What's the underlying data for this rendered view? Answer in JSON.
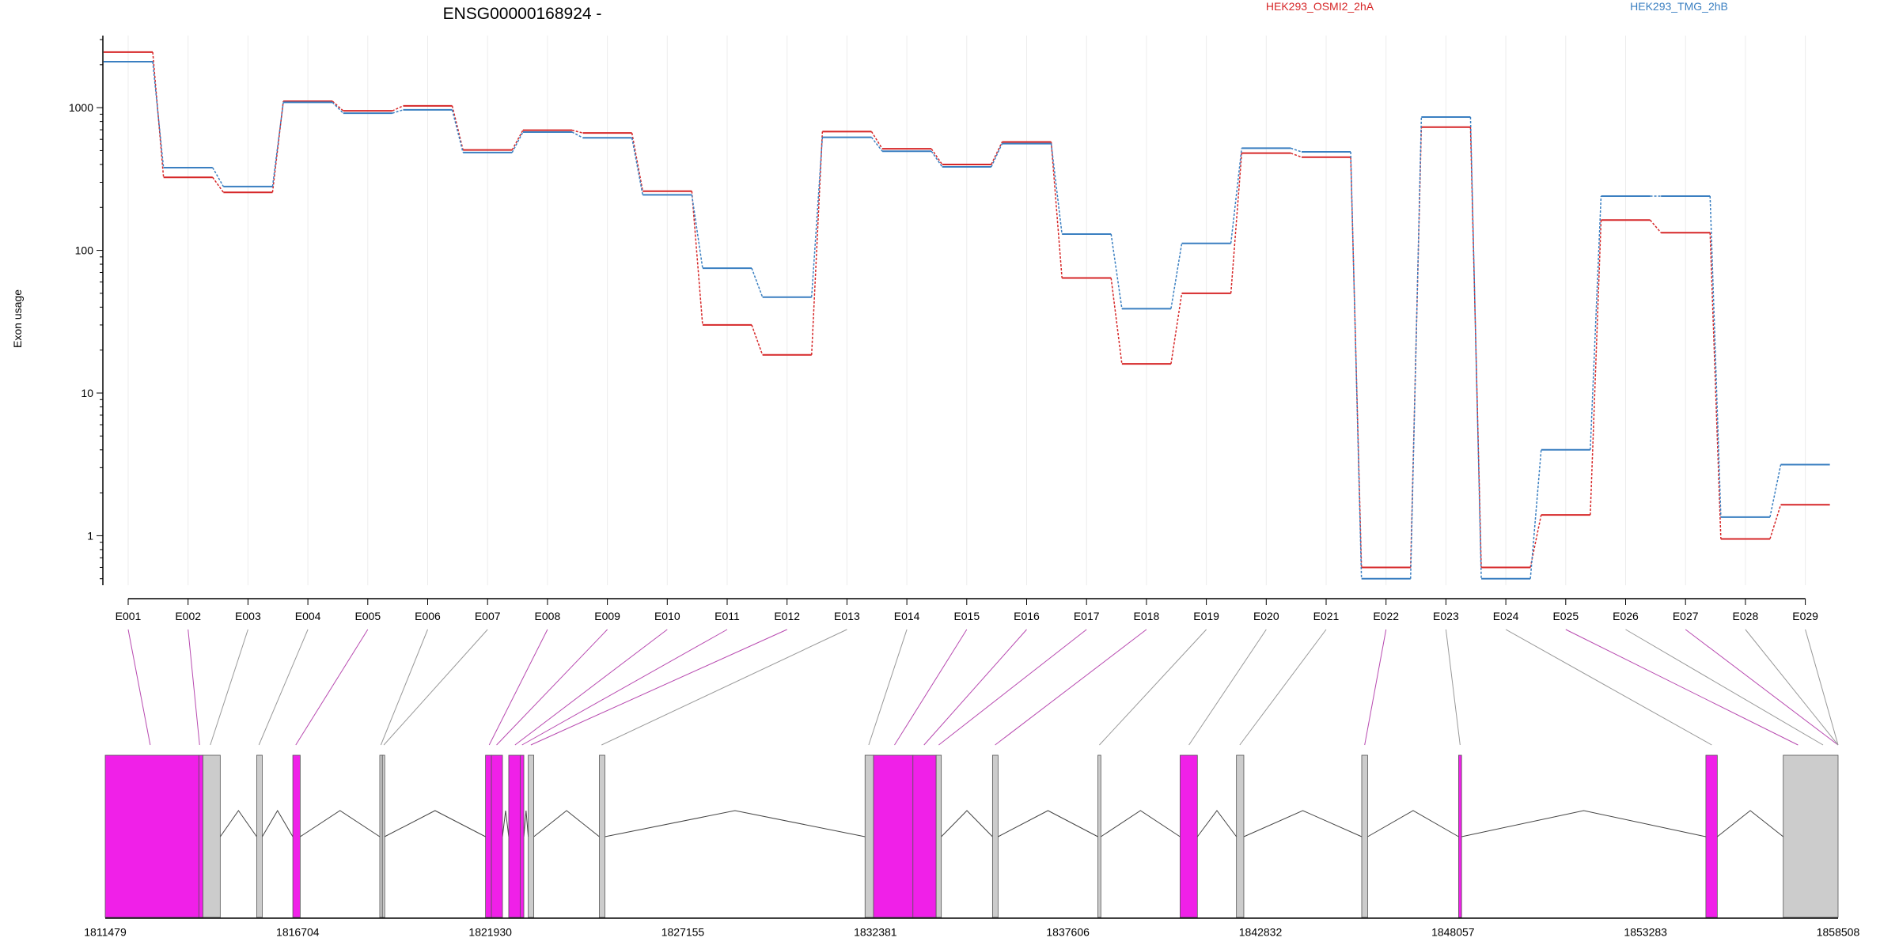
{
  "chart_data": {
    "type": "line",
    "title": "ENSG00000168924 -",
    "xlabel": "",
    "ylabel": "Exon usage",
    "y_scale": "log",
    "ylim": [
      0.45,
      3200
    ],
    "y_ticks": [
      1,
      10,
      100,
      1000
    ],
    "y_tick_labels": [
      "1",
      "10",
      "100",
      "1000"
    ],
    "grid": "vertical",
    "legend_placement": "top-right",
    "categories": [
      "E001",
      "E002",
      "E003",
      "E004",
      "E005",
      "E006",
      "E007",
      "E008",
      "E009",
      "E010",
      "E011",
      "E012",
      "E013",
      "E014",
      "E015",
      "E016",
      "E017",
      "E018",
      "E019",
      "E020",
      "E021",
      "E022",
      "E023",
      "E024",
      "E025",
      "E026",
      "E027",
      "E028",
      "E029"
    ],
    "series": [
      {
        "name": "HEK293_OSMI2_2hA",
        "color": "#d62728",
        "values": [
          2450,
          325,
          255,
          1110,
          950,
          1030,
          505,
          695,
          665,
          260,
          30,
          18.5,
          680,
          515,
          400,
          575,
          64,
          16,
          50,
          480,
          450,
          0.6,
          730,
          0.6,
          1.4,
          163,
          133,
          0.95,
          1.65
        ]
      },
      {
        "name": "HEK293_TMG_2hB",
        "color": "#3a7fc1",
        "values": [
          2100,
          380,
          280,
          1090,
          915,
          965,
          485,
          675,
          615,
          245,
          75,
          47,
          620,
          495,
          385,
          560,
          130,
          39,
          112,
          520,
          490,
          0.5,
          860,
          0.5,
          4,
          240,
          240,
          1.35,
          3.15
        ]
      }
    ],
    "gene_model": {
      "coordinate_labels": [
        "1811479",
        "1816704",
        "1821930",
        "1827155",
        "1832381",
        "1837606",
        "1842832",
        "1848057",
        "1853283",
        "1858508"
      ],
      "highlight_color": "#f020e8",
      "base_color": "#cccccc",
      "exons": [
        {
          "start": 1811479,
          "end": 1814020,
          "highlight": true
        },
        {
          "start": 1814020,
          "end": 1814130,
          "highlight": true
        },
        {
          "start": 1814130,
          "end": 1814600,
          "highlight": false
        },
        {
          "start": 1815590,
          "end": 1815740,
          "highlight": false
        },
        {
          "start": 1816570,
          "end": 1816770,
          "highlight": true
        },
        {
          "start": 1818930,
          "end": 1819000,
          "highlight": false
        },
        {
          "start": 1819000,
          "end": 1819060,
          "highlight": false
        },
        {
          "start": 1821800,
          "end": 1821960,
          "highlight": true
        },
        {
          "start": 1821960,
          "end": 1822260,
          "highlight": true
        },
        {
          "start": 1822430,
          "end": 1822740,
          "highlight": true
        },
        {
          "start": 1822740,
          "end": 1822840,
          "highlight": true
        },
        {
          "start": 1822960,
          "end": 1823110,
          "highlight": false
        },
        {
          "start": 1824890,
          "end": 1825040,
          "highlight": false
        },
        {
          "start": 1832100,
          "end": 1832330,
          "highlight": false
        },
        {
          "start": 1832330,
          "end": 1833400,
          "highlight": true
        },
        {
          "start": 1833400,
          "end": 1834030,
          "highlight": true
        },
        {
          "start": 1834030,
          "end": 1834170,
          "highlight": false
        },
        {
          "start": 1835560,
          "end": 1835710,
          "highlight": false
        },
        {
          "start": 1838420,
          "end": 1838500,
          "highlight": false
        },
        {
          "start": 1840650,
          "end": 1841120,
          "highlight": true
        },
        {
          "start": 1842180,
          "end": 1842380,
          "highlight": false
        },
        {
          "start": 1845580,
          "end": 1845740,
          "highlight": false
        },
        {
          "start": 1848210,
          "end": 1848290,
          "highlight": true
        },
        {
          "start": 1854920,
          "end": 1855230,
          "highlight": true
        },
        {
          "start": 1857020,
          "end": 1858508,
          "highlight": false
        }
      ],
      "exon_map_highlight": [
        true,
        true,
        false,
        false,
        true,
        false,
        false,
        true,
        true,
        true,
        true,
        true,
        false,
        false,
        true,
        true,
        true,
        true,
        false,
        false,
        false,
        true,
        false,
        false,
        true,
        false,
        true,
        false,
        false
      ],
      "exon_map_target": [
        1812700,
        1814040,
        1814330,
        1815650,
        1816650,
        1818960,
        1819040,
        1821900,
        1822100,
        1822600,
        1822790,
        1823030,
        1824950,
        1832200,
        1832900,
        1833700,
        1834100,
        1835630,
        1838460,
        1840890,
        1842270,
        1845660,
        1848250,
        1855080,
        1857420,
        1858100,
        1858800,
        1859250,
        1859700
      ]
    }
  }
}
